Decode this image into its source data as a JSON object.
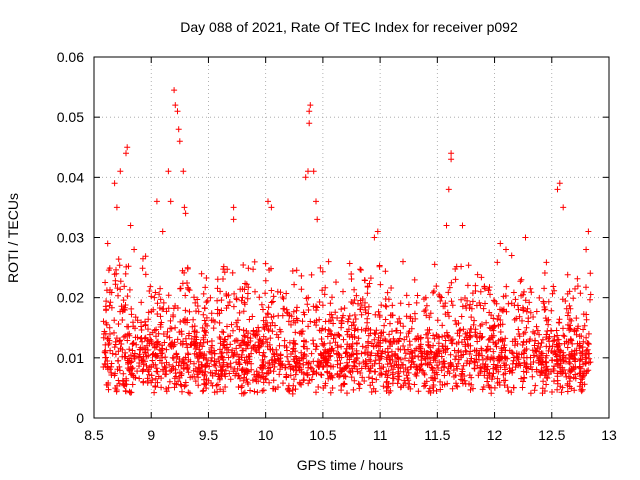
{
  "chart_data": {
    "type": "scatter",
    "title": "Day 088 of 2021, Rate Of TEC Index for receiver p092",
    "xlabel": "GPS time / hours",
    "ylabel": "ROTI / TECUs",
    "xlim": [
      8.5,
      13
    ],
    "ylim": [
      0,
      0.06
    ],
    "xticks": [
      8.5,
      9,
      9.5,
      10,
      10.5,
      11,
      11.5,
      12,
      12.5,
      13
    ],
    "xtick_labels": [
      "8.5",
      "9",
      "9.5",
      "10",
      "10.5",
      "11",
      "11.5",
      "12",
      "12.5",
      "13"
    ],
    "yticks": [
      0,
      0.01,
      0.02,
      0.03,
      0.04,
      0.05,
      0.06
    ],
    "ytick_labels": [
      "0",
      "0.01",
      "0.02",
      "0.03",
      "0.04",
      "0.05",
      "0.06"
    ],
    "grid": true,
    "marker": "+",
    "series": [
      {
        "name": "ROTI",
        "color": "#ff0000",
        "x_range": [
          8.58,
          12.84
        ],
        "n_points": 2400,
        "background_band": [
          0.004,
          0.018
        ],
        "notable_points": [
          [
            8.79,
            0.045
          ],
          [
            8.78,
            0.044
          ],
          [
            8.73,
            0.041
          ],
          [
            8.68,
            0.039
          ],
          [
            8.7,
            0.035
          ],
          [
            8.82,
            0.032
          ],
          [
            8.85,
            0.028
          ],
          [
            8.62,
            0.029
          ],
          [
            9.05,
            0.036
          ],
          [
            9.1,
            0.031
          ],
          [
            9.15,
            0.041
          ],
          [
            9.17,
            0.036
          ],
          [
            9.2,
            0.0545
          ],
          [
            9.21,
            0.052
          ],
          [
            9.23,
            0.051
          ],
          [
            9.24,
            0.048
          ],
          [
            9.25,
            0.046
          ],
          [
            9.28,
            0.041
          ],
          [
            9.29,
            0.035
          ],
          [
            9.3,
            0.034
          ],
          [
            9.72,
            0.035
          ],
          [
            9.72,
            0.033
          ],
          [
            10.02,
            0.036
          ],
          [
            10.05,
            0.035
          ],
          [
            10.35,
            0.04
          ],
          [
            10.37,
            0.041
          ],
          [
            10.38,
            0.051
          ],
          [
            10.39,
            0.052
          ],
          [
            10.38,
            0.049
          ],
          [
            10.42,
            0.041
          ],
          [
            10.44,
            0.036
          ],
          [
            10.45,
            0.033
          ],
          [
            10.95,
            0.03
          ],
          [
            10.98,
            0.031
          ],
          [
            11.58,
            0.032
          ],
          [
            11.6,
            0.038
          ],
          [
            11.62,
            0.044
          ],
          [
            11.62,
            0.043
          ],
          [
            11.72,
            0.032
          ],
          [
            12.05,
            0.029
          ],
          [
            12.1,
            0.028
          ],
          [
            12.27,
            0.03
          ],
          [
            12.55,
            0.038
          ],
          [
            12.57,
            0.039
          ],
          [
            12.6,
            0.035
          ],
          [
            12.82,
            0.031
          ],
          [
            12.8,
            0.028
          ],
          [
            12.15,
            0.027
          ],
          [
            11.2,
            0.026
          ],
          [
            10.55,
            0.026
          ]
        ]
      }
    ]
  }
}
